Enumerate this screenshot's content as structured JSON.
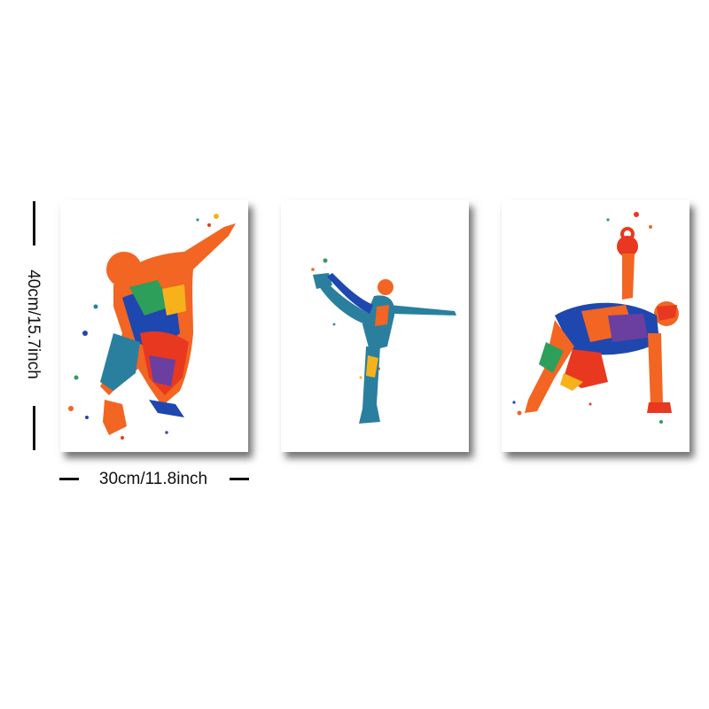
{
  "dimensions": {
    "height_label": "40cm/15.7inch",
    "width_label": "30cm/11.8inch"
  },
  "panels": [
    {
      "subject": "jumping basketball player figure in watercolor splash"
    },
    {
      "subject": "yoga dancer pose figure in blue watercolor splash"
    },
    {
      "subject": "kettlebell workout figure in watercolor splash"
    }
  ],
  "colors": {
    "orange": "#f26522",
    "red": "#e8381f",
    "yellow": "#f7b21b",
    "blue": "#1f47b0",
    "teal": "#2a7f9e",
    "green": "#2e9e5b",
    "purple": "#6a3fa0"
  }
}
